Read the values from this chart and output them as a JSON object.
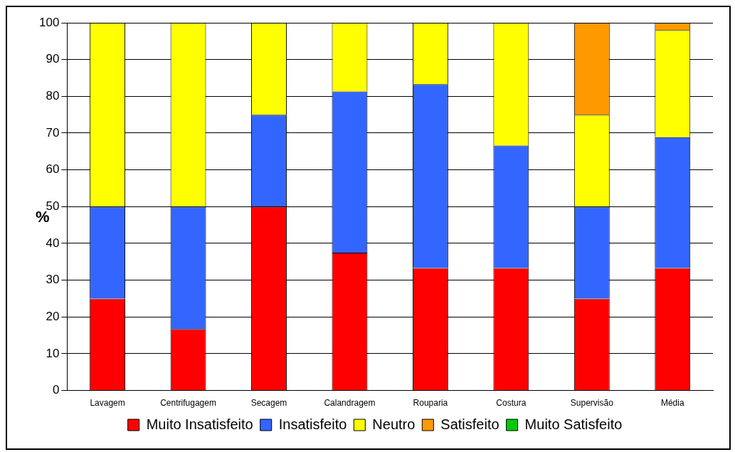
{
  "chart_data": {
    "type": "bar",
    "stacked": true,
    "ylabel": "%",
    "categories": [
      "Lavagem",
      "Centrifugagem",
      "Secagem",
      "Calandragem",
      "Rouparia",
      "Costura",
      "Supervisão",
      "Média"
    ],
    "series": [
      {
        "name": "Muito Insatisfeito",
        "color": "#ff0000",
        "values": [
          25,
          16.7,
          50,
          37.5,
          33.3,
          33.3,
          25,
          33.3
        ]
      },
      {
        "name": "Insatisfeito",
        "color": "#3366ff",
        "values": [
          25,
          33.3,
          25,
          43.8,
          50,
          33.3,
          25,
          35.6
        ]
      },
      {
        "name": "Neutro",
        "color": "#ffff00",
        "values": [
          50,
          50,
          25,
          18.7,
          16.7,
          33.4,
          25,
          29.1
        ]
      },
      {
        "name": "Satisfeito",
        "color": "#ff9900",
        "values": [
          0,
          0,
          0,
          0,
          0,
          0,
          25,
          2
        ]
      },
      {
        "name": "Muito Satisfeito",
        "color": "#00cc00",
        "values": [
          0,
          0,
          0,
          0,
          0,
          0,
          0,
          0
        ]
      }
    ],
    "ylim": [
      0,
      100
    ],
    "yticks": [
      0,
      10,
      20,
      30,
      40,
      50,
      60,
      70,
      80,
      90,
      100
    ],
    "grid": "y",
    "legend": "bottom"
  }
}
